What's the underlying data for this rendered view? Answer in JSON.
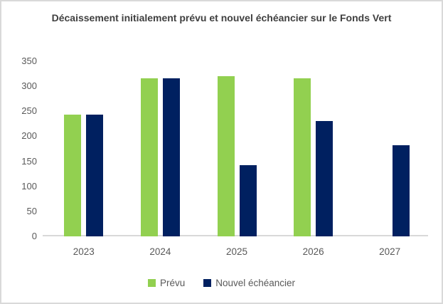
{
  "chart_data": {
    "type": "bar",
    "title": "Décaissement initialement prévu et nouvel échéancier sur le Fonds Vert",
    "categories": [
      "2023",
      "2024",
      "2025",
      "2026",
      "2027"
    ],
    "series": [
      {
        "name": "Prévu",
        "color": "#92D050",
        "values": [
          243,
          316,
          320,
          316,
          null
        ]
      },
      {
        "name": "Nouvel échéancier",
        "color": "#002060",
        "values": [
          243,
          316,
          142,
          230,
          182
        ]
      }
    ],
    "xlabel": "",
    "ylabel": "",
    "ylim": [
      0,
      350
    ],
    "yticks": [
      0,
      50,
      100,
      150,
      200,
      250,
      300,
      350
    ],
    "grid": false,
    "legend_position": "bottom"
  },
  "colors": {
    "axis_line": "#d9d9d9",
    "axis_text": "#595959",
    "title_text": "#404040",
    "frame_border": "#d9d9d9",
    "background": "#ffffff"
  }
}
